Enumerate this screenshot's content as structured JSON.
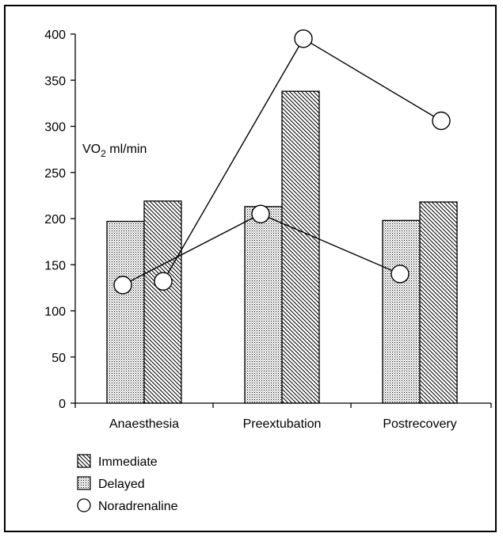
{
  "chart_data": {
    "type": "bar",
    "categories": [
      "Anaesthesia",
      "Preextubation",
      "Postrecovery"
    ],
    "ylabel_main": "VO",
    "ylabel_sub": "2",
    "ylabel_rest": " ml/min",
    "ylim": [
      0,
      400
    ],
    "yticks": [
      0,
      50,
      100,
      150,
      200,
      250,
      300,
      350,
      400
    ],
    "series": [
      {
        "name": "Delayed",
        "type": "bar",
        "pattern": "dots",
        "values": [
          197,
          213,
          198
        ]
      },
      {
        "name": "Immediate",
        "type": "bar",
        "pattern": "hatch",
        "values": [
          219,
          338,
          218
        ]
      },
      {
        "name": "Noradrenaline",
        "type": "line",
        "marker": "circle",
        "lines": [
          {
            "values": [
              128,
              205,
              140
            ]
          },
          {
            "values": [
              132,
              395,
              306
            ]
          }
        ]
      }
    ],
    "legend": {
      "placement": "bottom-left",
      "items": [
        "Immediate",
        "Delayed",
        "Noradrenaline"
      ]
    },
    "grid": false
  }
}
